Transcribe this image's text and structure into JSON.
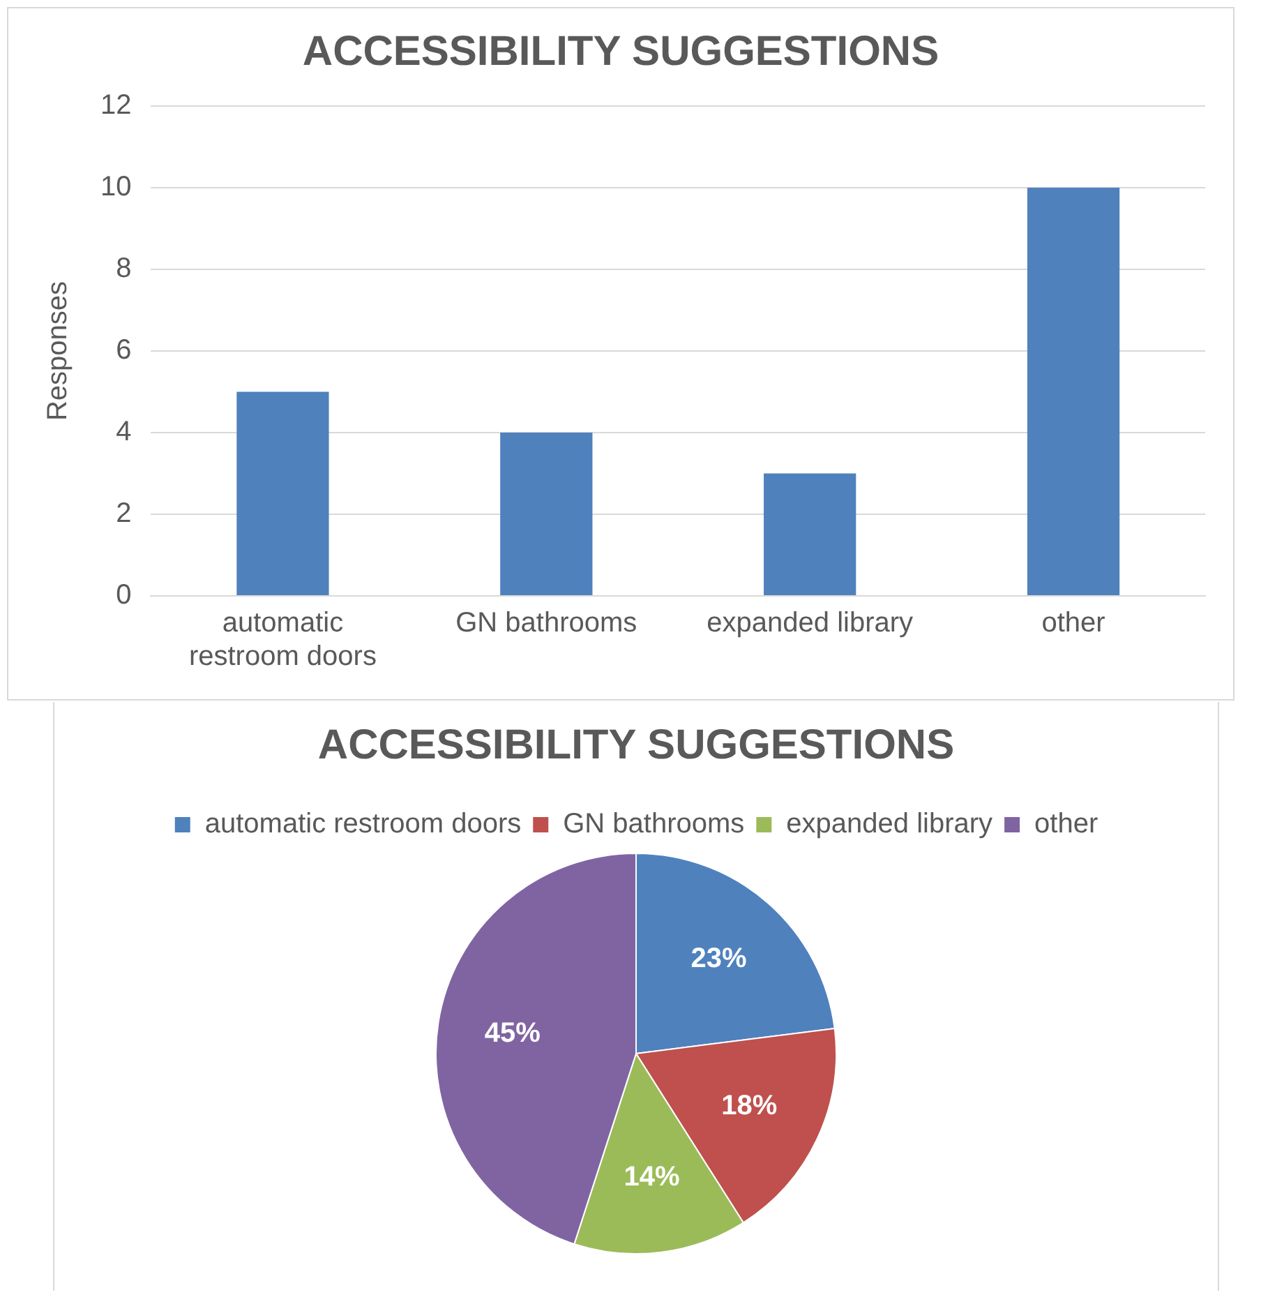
{
  "chart_data": [
    {
      "type": "bar",
      "title": "ACCESSIBILITY SUGGESTIONS",
      "ylabel": "Responses",
      "categories": [
        "automatic restroom doors",
        "GN bathrooms",
        "expanded library",
        "other"
      ],
      "values": [
        5,
        4,
        3,
        10
      ],
      "color": "#4f81bd",
      "ylim": [
        0,
        12
      ],
      "yticks": [
        0,
        2,
        4,
        6,
        8,
        10,
        12
      ],
      "grid": "y",
      "legend": false
    },
    {
      "type": "pie",
      "title": "ACCESSIBILITY SUGGESTIONS",
      "categories": [
        "automatic restroom doors",
        "GN bathrooms",
        "expanded library",
        "other"
      ],
      "values": [
        23,
        18,
        14,
        45
      ],
      "colors": [
        "#4f81bd",
        "#c0504d",
        "#9bbb59",
        "#8064a2"
      ],
      "value_labels": [
        "23%",
        "18%",
        "14%",
        "45%"
      ],
      "legend": "top"
    }
  ]
}
